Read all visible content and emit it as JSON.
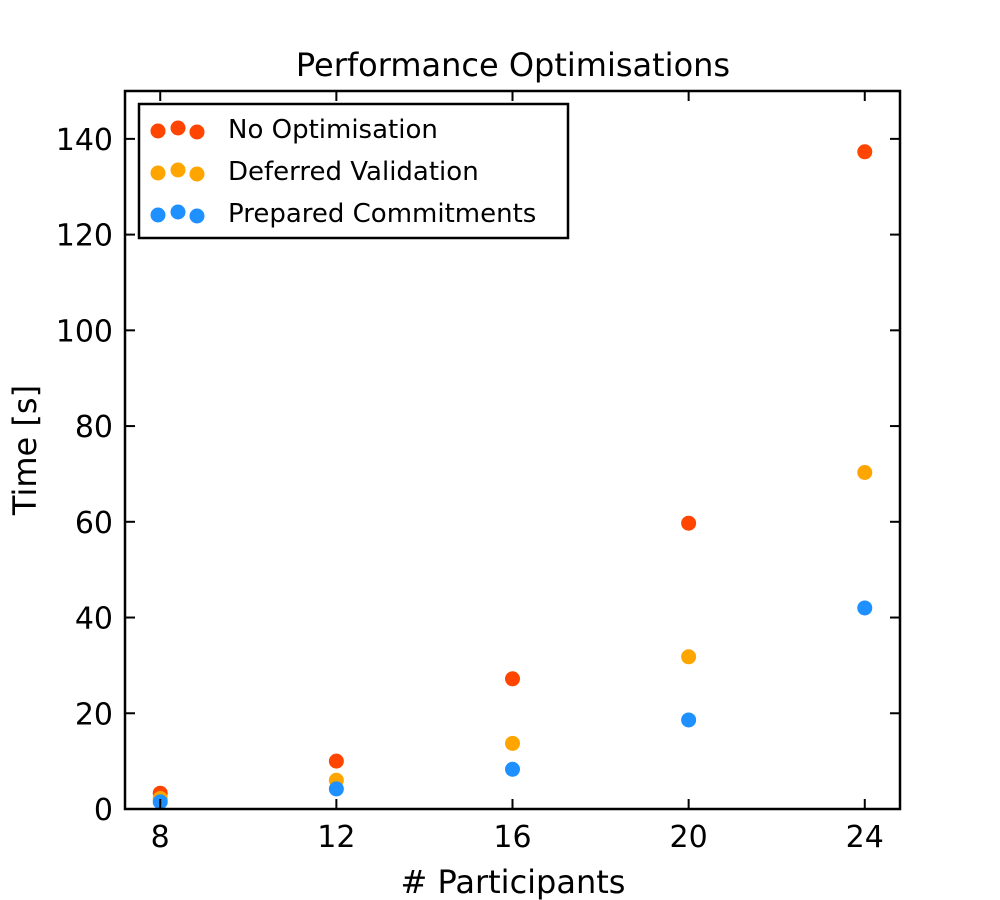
{
  "chart_data": {
    "type": "scatter",
    "title": "Performance Optimisations",
    "xlabel": "# Participants",
    "ylabel": "Time [s]",
    "xlim": [
      7.2,
      24.8
    ],
    "ylim": [
      0,
      150
    ],
    "xticks": [
      8,
      12,
      16,
      20,
      24
    ],
    "yticks": [
      0,
      20,
      40,
      60,
      80,
      100,
      120,
      140
    ],
    "legend_position": "top-left",
    "grid": false,
    "series": [
      {
        "name": "No Optimisation",
        "color": "#ff4500",
        "x": [
          8,
          12,
          16,
          20,
          24
        ],
        "y": [
          3.3,
          10.0,
          27.2,
          59.7,
          137.3
        ]
      },
      {
        "name": "Deferred Validation",
        "color": "#ffa500",
        "x": [
          8,
          12,
          16,
          20,
          24
        ],
        "y": [
          2.2,
          6.0,
          13.7,
          31.8,
          70.3
        ]
      },
      {
        "name": "Prepared Commitments",
        "color": "#1e90ff",
        "x": [
          8,
          12,
          16,
          20,
          24
        ],
        "y": [
          1.5,
          4.2,
          8.3,
          18.6,
          42.0
        ]
      }
    ]
  }
}
